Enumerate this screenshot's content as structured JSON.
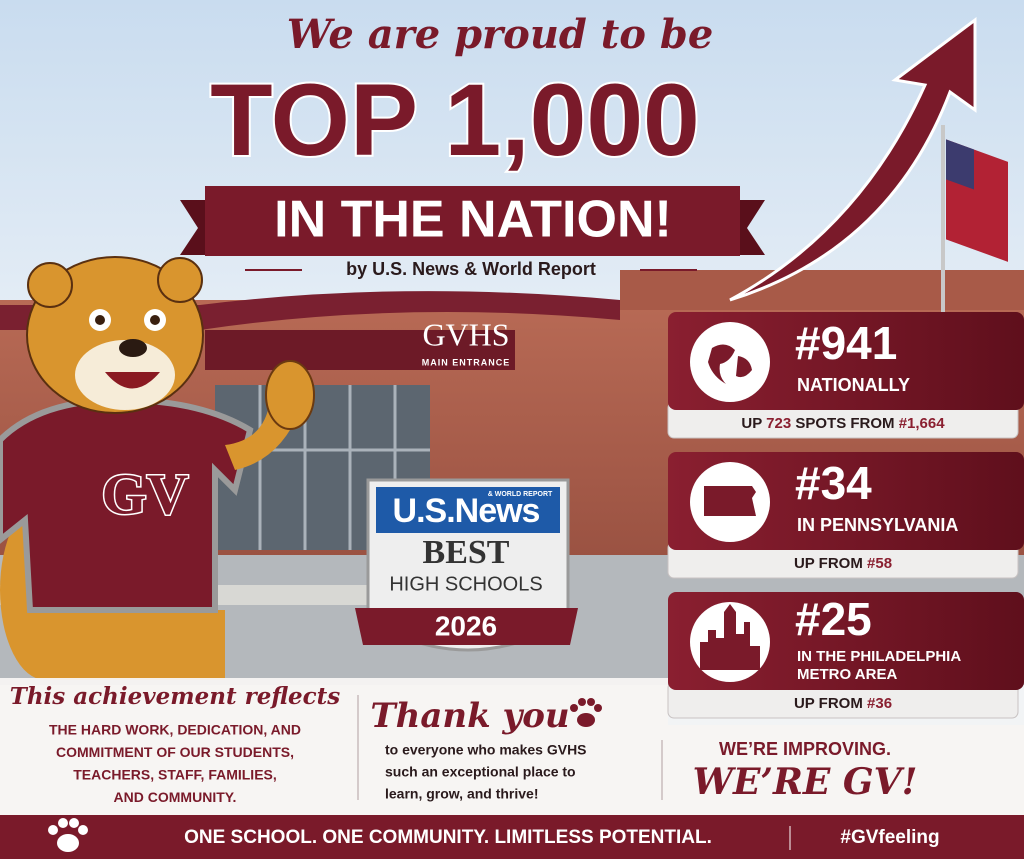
{
  "header": {
    "intro": "We are proud to be",
    "headline": "TOP 1,000",
    "banner": "IN THE NATION!",
    "source": "by U.S. News & World Report"
  },
  "building": {
    "sign": "GVHS",
    "sign_sub": "MAIN ENTRANCE"
  },
  "mascot": {
    "jersey": "GV"
  },
  "badge": {
    "brand": "U.S.News",
    "brand_sub": "& WORLD REPORT",
    "title": "BEST",
    "subtitle": "HIGH SCHOOLS",
    "year": "2026"
  },
  "rankings": [
    {
      "rank": "#941",
      "scope_lines": [
        "NATIONALLY"
      ],
      "change": {
        "prefix": "UP",
        "delta": "723",
        "middle": "SPOTS FROM",
        "previous": "#1,664"
      }
    },
    {
      "rank": "#34",
      "scope_lines": [
        "IN PENNSYLVANIA"
      ],
      "change": {
        "prefix": "UP FROM",
        "previous": "#58"
      }
    },
    {
      "rank": "#25",
      "scope_lines": [
        "IN THE PHILADELPHIA",
        "METRO AREA"
      ],
      "change": {
        "prefix": "UP FROM",
        "previous": "#36"
      }
    }
  ],
  "achievement": {
    "title": "This achievement reflects",
    "lines": [
      "THE HARD WORK, DEDICATION, AND",
      "COMMITMENT OF OUR STUDENTS,",
      "TEACHERS, STAFF, FAMILIES,",
      "AND COMMUNITY."
    ]
  },
  "thanks": {
    "title": "Thank you",
    "lines": [
      "to everyone who makes GVHS",
      "such an exceptional place to",
      "learn, grow, and thrive!"
    ]
  },
  "motto": {
    "line1": "WE’RE IMPROVING.",
    "line2": "WE’RE GV!"
  },
  "footer": {
    "slogan": "ONE SCHOOL. ONE COMMUNITY. LIMITLESS POTENTIAL.",
    "hashtag": "#GVfeeling"
  }
}
